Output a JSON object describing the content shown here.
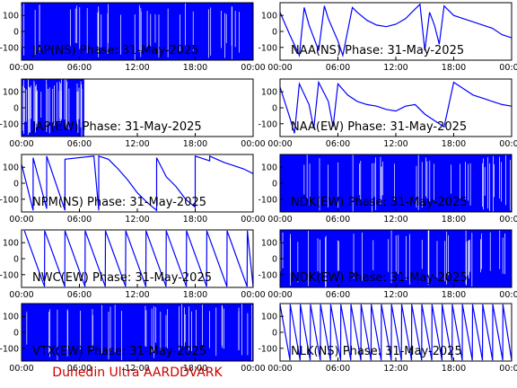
{
  "footer": "Dunedin Ultra AARDDVARK",
  "colors": {
    "trace": "#0000ff",
    "axis": "#000000",
    "footer": "#cc0000"
  },
  "axes": {
    "x_ticks": [
      "00:00",
      "06:00",
      "12:00",
      "18:00",
      "00:00"
    ],
    "y_ticks": [
      "100",
      "0",
      "-100"
    ],
    "xlim": [
      0,
      24
    ],
    "ylim": [
      -180,
      180
    ]
  },
  "chart_data": [
    {
      "type": "line",
      "title": "JAP(NS) Phase: 31-May-2025",
      "pattern": "dense",
      "dense_range": [
        0,
        24
      ]
    },
    {
      "type": "line",
      "title": "NAA(NS) Phase: 31-May-2025",
      "pattern": "mixed",
      "points": [
        [
          0,
          120
        ],
        [
          1,
          -20
        ],
        [
          2,
          -150
        ],
        [
          2.5,
          150
        ],
        [
          3,
          40
        ],
        [
          4,
          -120
        ],
        [
          4.6,
          160
        ],
        [
          5,
          80
        ],
        [
          6,
          -60
        ],
        [
          6.5,
          -150
        ],
        [
          7.5,
          150
        ],
        [
          8,
          120
        ],
        [
          9,
          70
        ],
        [
          10,
          40
        ],
        [
          11,
          30
        ],
        [
          12,
          45
        ],
        [
          13,
          80
        ],
        [
          14,
          140
        ],
        [
          14.5,
          170
        ],
        [
          15,
          -120
        ],
        [
          15.5,
          120
        ],
        [
          16,
          40
        ],
        [
          16.5,
          -80
        ],
        [
          17,
          160
        ],
        [
          18,
          100
        ],
        [
          19,
          80
        ],
        [
          20,
          60
        ],
        [
          21,
          40
        ],
        [
          22,
          20
        ],
        [
          23,
          -20
        ],
        [
          24,
          -40
        ]
      ]
    },
    {
      "type": "line",
      "title": "JAP(EW) Phase: 31-May-2025",
      "pattern": "dense",
      "dense_range": [
        0,
        6.5
      ]
    },
    {
      "type": "line",
      "title": "NAA(EW) Phase: 31-May-2025",
      "pattern": "mixed",
      "points": [
        [
          0,
          130
        ],
        [
          1,
          -60
        ],
        [
          1.5,
          -160
        ],
        [
          2,
          150
        ],
        [
          3,
          20
        ],
        [
          3.5,
          -130
        ],
        [
          4,
          160
        ],
        [
          5,
          40
        ],
        [
          5.5,
          -120
        ],
        [
          6,
          150
        ],
        [
          7,
          80
        ],
        [
          8,
          40
        ],
        [
          9,
          20
        ],
        [
          10,
          10
        ],
        [
          11,
          -10
        ],
        [
          12,
          -20
        ],
        [
          13,
          10
        ],
        [
          14,
          20
        ],
        [
          15,
          -40
        ],
        [
          16,
          -80
        ],
        [
          17,
          -120
        ],
        [
          18,
          160
        ],
        [
          19,
          120
        ],
        [
          20,
          80
        ],
        [
          21,
          60
        ],
        [
          22,
          40
        ],
        [
          23,
          20
        ],
        [
          24,
          10
        ]
      ]
    },
    {
      "type": "line",
      "title": "NPM(NS) Phase: 31-May-2025",
      "pattern": "sawtooth",
      "points": [
        [
          0,
          120
        ],
        [
          1.2,
          -170
        ],
        [
          1.2,
          160
        ],
        [
          2.6,
          -160
        ],
        [
          2.6,
          170
        ],
        [
          4.5,
          -170
        ],
        [
          4.5,
          150
        ],
        [
          7.5,
          170
        ],
        [
          8,
          -170
        ],
        [
          8,
          170
        ],
        [
          9,
          150
        ],
        [
          10,
          90
        ],
        [
          11,
          20
        ],
        [
          12,
          -60
        ],
        [
          13,
          -120
        ],
        [
          14,
          -170
        ],
        [
          14,
          160
        ],
        [
          15,
          40
        ],
        [
          16,
          -20
        ],
        [
          17,
          -100
        ],
        [
          18,
          -150
        ],
        [
          18,
          170
        ],
        [
          19.5,
          140
        ],
        [
          19.5,
          170
        ],
        [
          21,
          130
        ],
        [
          22,
          110
        ],
        [
          23,
          90
        ],
        [
          24,
          60
        ]
      ]
    },
    {
      "type": "line",
      "title": "NDK(EW) Phase: 31-May-2025",
      "pattern": "dense",
      "dense_range": [
        0,
        24
      ]
    },
    {
      "type": "line",
      "title": "NWC(EW) Phase: 31-May-2025",
      "pattern": "ramps",
      "period": 2.1,
      "start": 0.3,
      "end": 24
    },
    {
      "type": "line",
      "title": "NDK(EW) Phase: 31-May-2025",
      "pattern": "dense",
      "dense_range": [
        0,
        24
      ]
    },
    {
      "type": "line",
      "title": "VTX(EW) Phase: 31-May-2025",
      "pattern": "dense",
      "dense_range": [
        0,
        24
      ]
    },
    {
      "type": "line",
      "title": "NLK(NS) Phase: 31-May-2025",
      "pattern": "ramps",
      "period": 1.05,
      "start": 0,
      "end": 24
    }
  ]
}
